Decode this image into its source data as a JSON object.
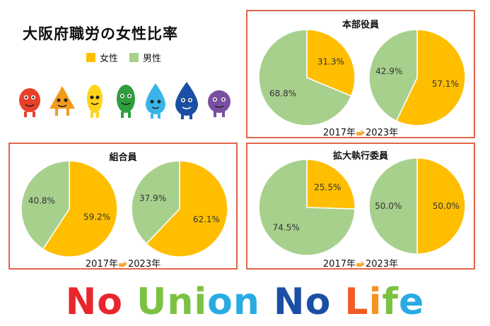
{
  "title": "大阪府職労の女性比率",
  "legend": [
    {
      "label": "女性",
      "color": "#ffbe00"
    },
    {
      "label": "男性",
      "color": "#a8d08d"
    }
  ],
  "colors": {
    "female": "#ffbe00",
    "male": "#a8d08d",
    "border": "#e0664a"
  },
  "years_caption": {
    "from": "2017年",
    "to": "2023年",
    "arrow_icon": "pointing-hand-icon"
  },
  "mascots": [
    "red-mascot-icon",
    "orange-mascot-icon",
    "yellow-mascot-icon",
    "green-mascot-icon",
    "light-blue-mascot-icon",
    "blue-mascot-icon",
    "purple-mascot-icon"
  ],
  "chart_data": [
    {
      "type": "pie",
      "title": "本部役員",
      "pies": [
        {
          "year": "2017年",
          "slices": [
            {
              "name": "女性",
              "value": 31.3,
              "label": "31.3%"
            },
            {
              "name": "男性",
              "value": 68.8,
              "label": "68.8%"
            }
          ]
        },
        {
          "year": "2023年",
          "slices": [
            {
              "name": "女性",
              "value": 57.1,
              "label": "57.1%"
            },
            {
              "name": "男性",
              "value": 42.9,
              "label": "42.9%"
            }
          ]
        }
      ]
    },
    {
      "type": "pie",
      "title": "組合員",
      "pies": [
        {
          "year": "2017年",
          "slices": [
            {
              "name": "女性",
              "value": 59.2,
              "label": "59.2%"
            },
            {
              "name": "男性",
              "value": 40.8,
              "label": "40.8%"
            }
          ]
        },
        {
          "year": "2023年",
          "slices": [
            {
              "name": "女性",
              "value": 62.1,
              "label": "62.1%"
            },
            {
              "name": "男性",
              "value": 37.9,
              "label": "37.9%"
            }
          ]
        }
      ]
    },
    {
      "type": "pie",
      "title": "拡大執行委員",
      "pies": [
        {
          "year": "2017年",
          "slices": [
            {
              "name": "女性",
              "value": 25.5,
              "label": "25.5%"
            },
            {
              "name": "男性",
              "value": 74.5,
              "label": "74.5%"
            }
          ]
        },
        {
          "year": "2023年",
          "slices": [
            {
              "name": "女性",
              "value": 50.0,
              "label": "50.0%"
            },
            {
              "name": "男性",
              "value": 50.0,
              "label": "50.0%"
            }
          ]
        }
      ]
    }
  ],
  "slogan": {
    "words": [
      {
        "letters": [
          {
            "ch": "N",
            "color": "#e8262b"
          },
          {
            "ch": "o",
            "color": "#e8262b"
          }
        ]
      },
      {
        "letters": [
          {
            "ch": "U",
            "color": "#7cc242"
          },
          {
            "ch": "n",
            "color": "#7cc242"
          },
          {
            "ch": "i",
            "color": "#7cc242"
          },
          {
            "ch": "o",
            "color": "#29abe2"
          },
          {
            "ch": "n",
            "color": "#29abe2"
          }
        ]
      },
      {
        "letters": [
          {
            "ch": "N",
            "color": "#1b4fa5"
          },
          {
            "ch": "o",
            "color": "#1b4fa5"
          }
        ]
      },
      {
        "letters": [
          {
            "ch": "L",
            "color": "#f15a24"
          },
          {
            "ch": "i",
            "color": "#f7931e"
          },
          {
            "ch": "f",
            "color": "#7cc242"
          },
          {
            "ch": "e",
            "color": "#29abe2"
          }
        ]
      }
    ]
  }
}
